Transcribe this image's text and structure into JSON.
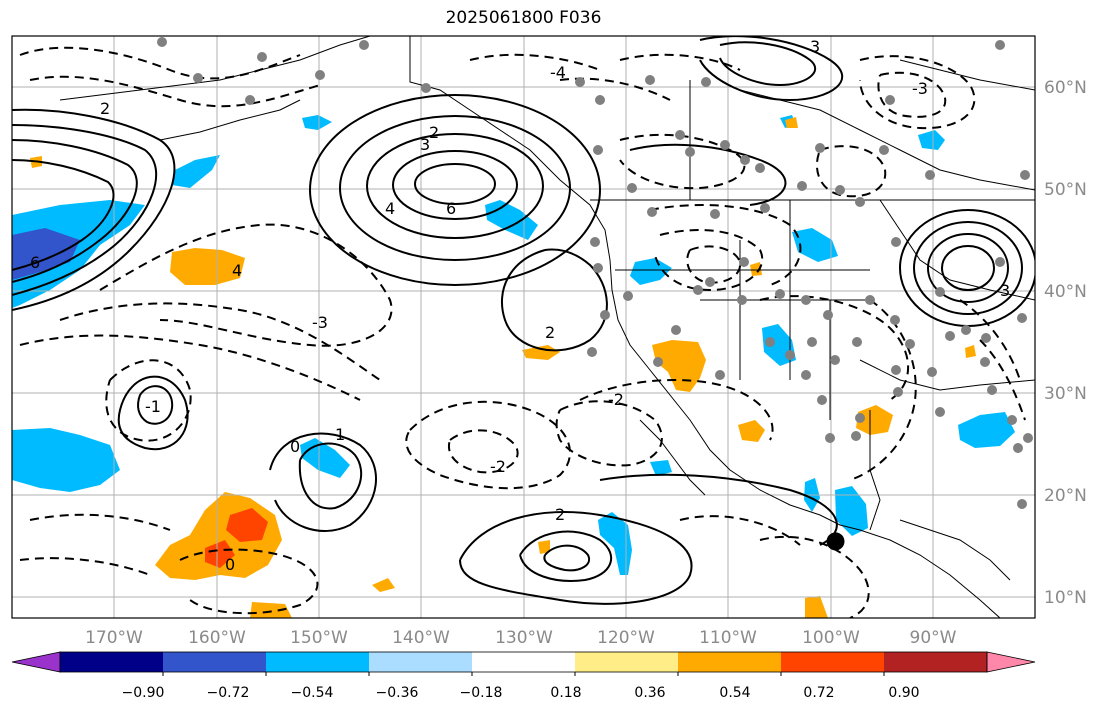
{
  "title": "2025061800 F036",
  "map": {
    "lon_range": [
      -178,
      -78
    ],
    "lat_range": [
      8,
      65
    ],
    "lat_ticks": [
      {
        "value": 60,
        "label": "60°N"
      },
      {
        "value": 50,
        "label": "50°N"
      },
      {
        "value": 40,
        "label": "40°N"
      },
      {
        "value": 30,
        "label": "30°N"
      },
      {
        "value": 20,
        "label": "20°N"
      },
      {
        "value": 10,
        "label": "10°N"
      }
    ],
    "lon_ticks": [
      {
        "value": -170,
        "label": "170°W"
      },
      {
        "value": -160,
        "label": "160°W"
      },
      {
        "value": -150,
        "label": "150°W"
      },
      {
        "value": -140,
        "label": "140°W"
      },
      {
        "value": -130,
        "label": "130°W"
      },
      {
        "value": -120,
        "label": "120°W"
      },
      {
        "value": -110,
        "label": "110°W"
      },
      {
        "value": -100,
        "label": "100°W"
      },
      {
        "value": -90,
        "label": "90°W"
      }
    ],
    "gridlines": true,
    "contour_labels": [
      "6",
      "4",
      "3",
      "2",
      "1",
      "0",
      "-1",
      "-2",
      "-3",
      "-4",
      "2",
      "3",
      "6",
      "2",
      "0",
      "-2",
      "-3",
      "2",
      "4",
      "3"
    ],
    "marker": {
      "lon": -97.5,
      "lat": 15.5,
      "color": "#000000"
    }
  },
  "colorbar": {
    "colors": [
      "#9933cc",
      "#000088",
      "#3355cc",
      "#00bbff",
      "#aaddff",
      "#ffffff",
      "#ffee88",
      "#ffaa00",
      "#ff4400",
      "#b22222",
      "#ff88aa"
    ],
    "tick_labels": [
      "−0.90",
      "−0.72",
      "−0.54",
      "−0.36",
      "−0.18",
      "0.18",
      "0.36",
      "0.54",
      "0.72",
      "0.90"
    ],
    "extend": "both"
  }
}
